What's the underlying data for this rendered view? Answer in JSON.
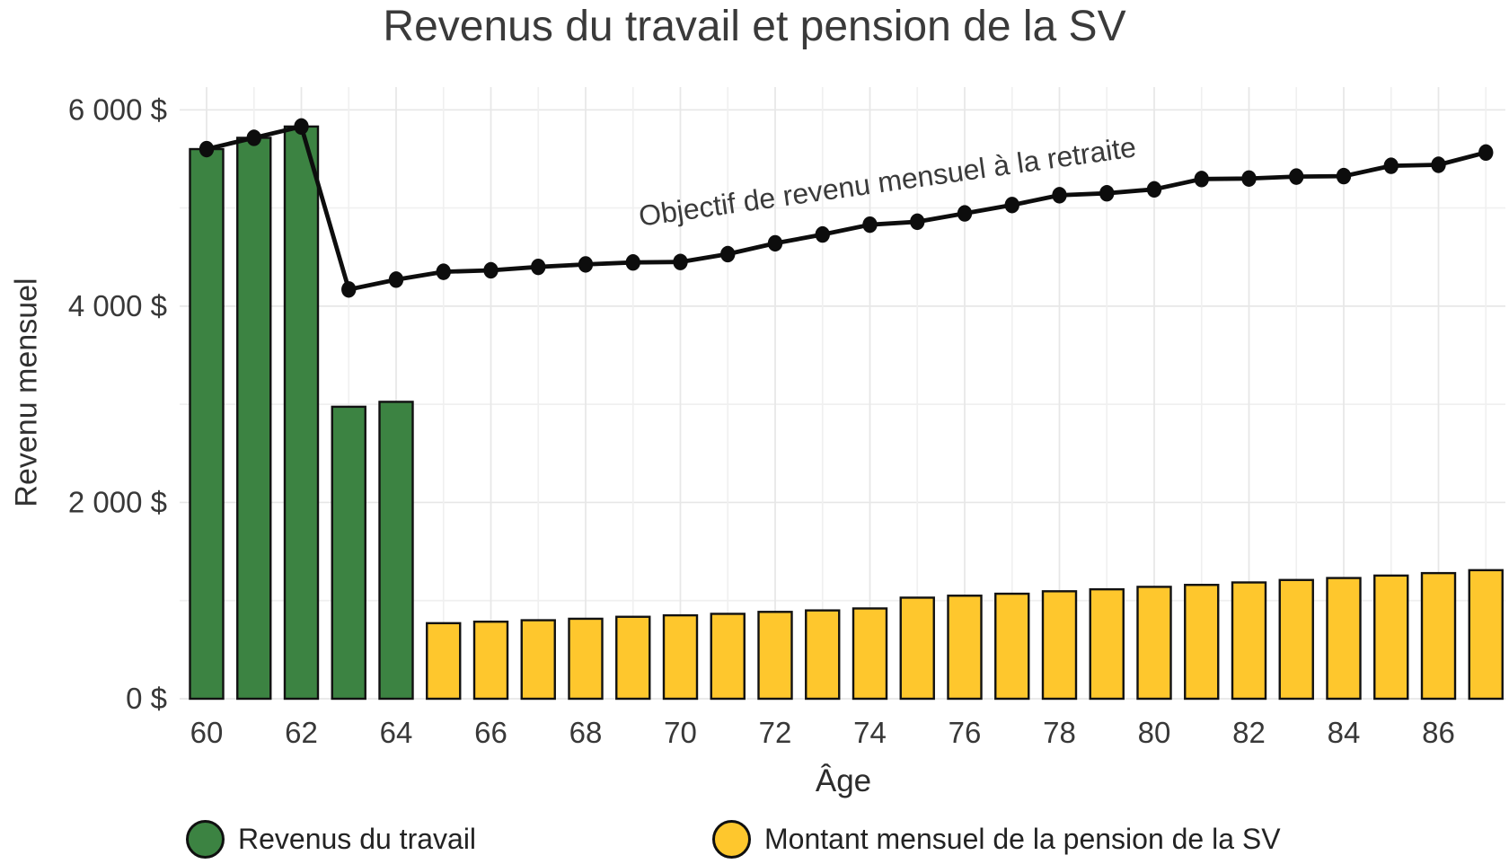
{
  "chart_data": {
    "type": "bar",
    "title": "Revenus du travail et pension de la SV",
    "ylabel": "Revenu mensuel",
    "xlabel": "Âge",
    "annotation": "Objectif de revenu mensuel à la retraite",
    "x_field": "age",
    "ylim": [
      0,
      6230
    ],
    "xlim": [
      59.4,
      87.45
    ],
    "grid": {
      "y_major_step": 2000,
      "y_minor_step": 1000,
      "x_major": "even ages",
      "x_minor": "odd ages"
    },
    "legend_position": "bottom",
    "colors": {
      "work_bar": "#3c8342",
      "pension_bar": "#fec72d",
      "bar_stroke": "#111111",
      "line": "#0d0d0d",
      "grid_major": "#e7e7e7",
      "grid_minor": "#f0f0f0"
    },
    "series": [
      {
        "name": "Revenus du travail",
        "type": "bar",
        "color": "#3c8342",
        "ages": [
          60,
          61,
          62,
          63,
          64
        ],
        "values": [
          5600,
          5715,
          5830,
          2975,
          3025
        ]
      },
      {
        "name": "Montant mensuel de la pension de la SV",
        "type": "bar",
        "color": "#fec72d",
        "ages": [
          65,
          66,
          67,
          68,
          69,
          70,
          71,
          72,
          73,
          74,
          75,
          76,
          77,
          78,
          79,
          80,
          81,
          82,
          83,
          84,
          85,
          86,
          87
        ],
        "values": [
          770,
          785,
          800,
          815,
          835,
          850,
          865,
          885,
          900,
          920,
          1030,
          1050,
          1070,
          1095,
          1115,
          1140,
          1160,
          1185,
          1210,
          1230,
          1255,
          1280,
          1310
        ]
      },
      {
        "name": "Objectif de revenu mensuel à la retraite",
        "type": "line",
        "color": "#0d0d0d",
        "ages": [
          60,
          61,
          62,
          63,
          64,
          65,
          66,
          67,
          68,
          69,
          70,
          71,
          72,
          73,
          74,
          75,
          76,
          77,
          78,
          79,
          80,
          81,
          82,
          83,
          84,
          85,
          86,
          87
        ],
        "values": [
          5600,
          5715,
          5830,
          4170,
          4270,
          4350,
          4365,
          4400,
          4425,
          4445,
          4450,
          4530,
          4640,
          4730,
          4830,
          4860,
          4945,
          5030,
          5130,
          5150,
          5190,
          5295,
          5300,
          5320,
          5325,
          5430,
          5440,
          5565
        ]
      }
    ],
    "y_ticks": [
      {
        "value": 0,
        "label": "0 $"
      },
      {
        "value": 2000,
        "label": "2 000 $"
      },
      {
        "value": 4000,
        "label": "4 000 $"
      },
      {
        "value": 6000,
        "label": "6 000 $"
      }
    ],
    "x_ticks": [
      {
        "value": 60,
        "label": "60"
      },
      {
        "value": 62,
        "label": "62"
      },
      {
        "value": 64,
        "label": "64"
      },
      {
        "value": 66,
        "label": "66"
      },
      {
        "value": 68,
        "label": "68"
      },
      {
        "value": 70,
        "label": "70"
      },
      {
        "value": 72,
        "label": "72"
      },
      {
        "value": 74,
        "label": "74"
      },
      {
        "value": 76,
        "label": "76"
      },
      {
        "value": 78,
        "label": "78"
      },
      {
        "value": 80,
        "label": "80"
      },
      {
        "value": 82,
        "label": "82"
      },
      {
        "value": 84,
        "label": "84"
      },
      {
        "value": 86,
        "label": "86"
      }
    ]
  }
}
